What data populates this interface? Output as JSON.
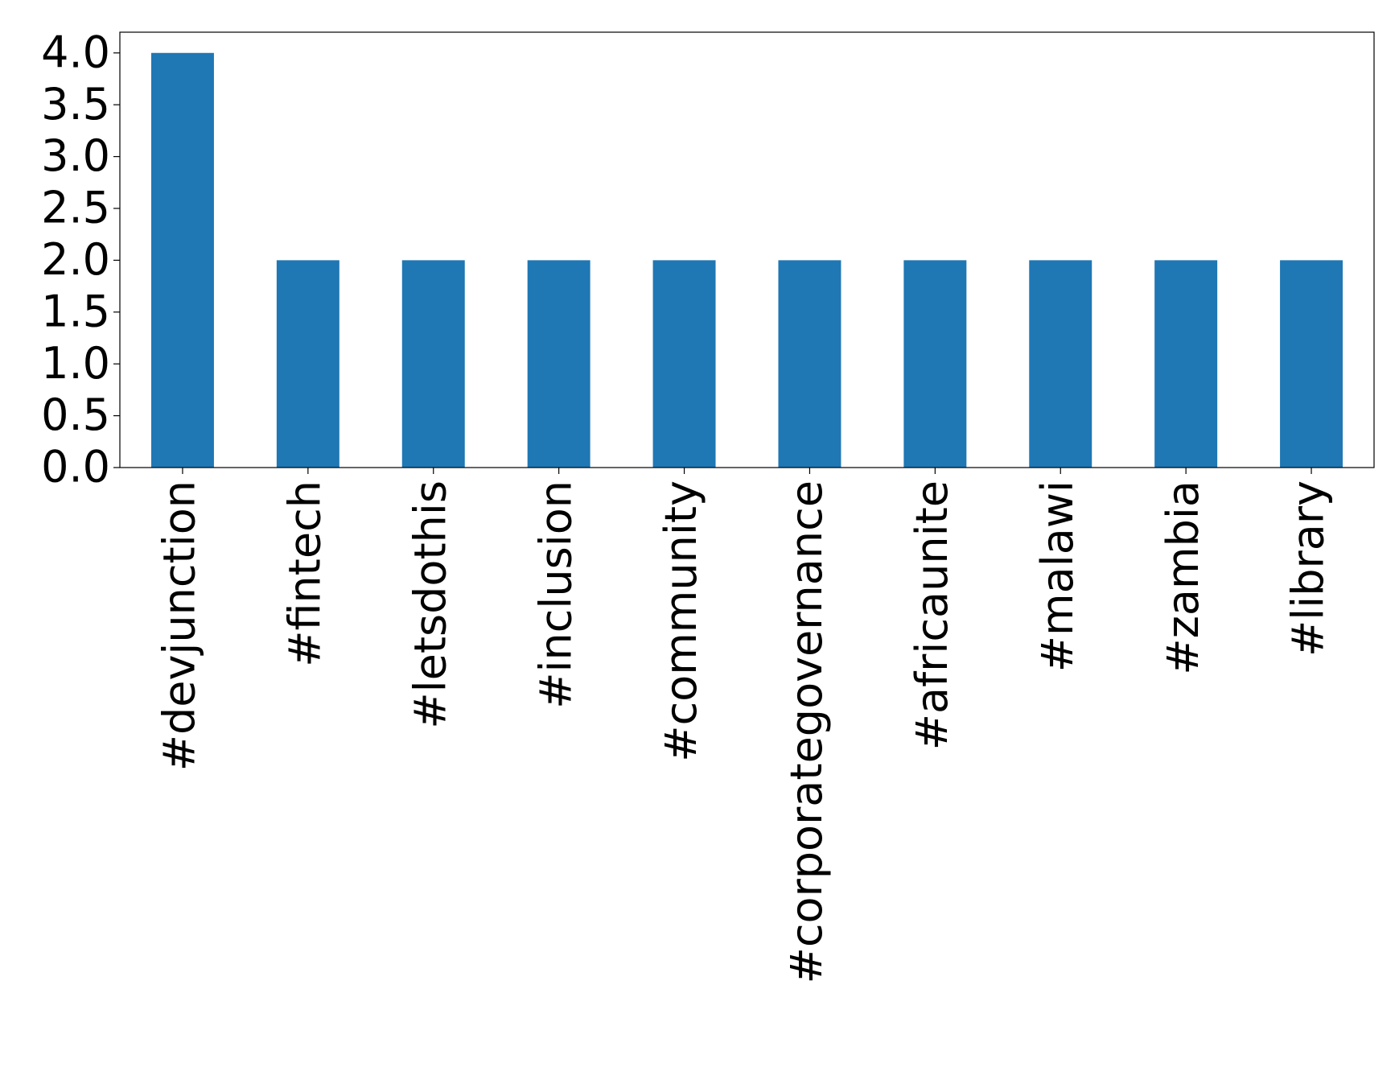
{
  "chart_data": {
    "type": "bar",
    "categories": [
      "#devjunction",
      "#fintech",
      "#letsdothis",
      "#inclusion",
      "#community",
      "#corporategovernance",
      "#africaunite",
      "#malawi",
      "#zambia",
      "#library"
    ],
    "values": [
      4,
      2,
      2,
      2,
      2,
      2,
      2,
      2,
      2,
      2
    ],
    "color": "#1f77b4",
    "ylim": [
      0,
      4.2
    ],
    "yticks": [
      {
        "value": 0,
        "label": "0.0"
      },
      0.5,
      {
        "value": 1,
        "label": "1.0"
      },
      1.5,
      {
        "value": 2,
        "label": "2.0"
      },
      2.5,
      {
        "value": 3,
        "label": "3.0"
      },
      3.5,
      {
        "value": 4,
        "label": "4.0"
      }
    ],
    "grid": false
  }
}
